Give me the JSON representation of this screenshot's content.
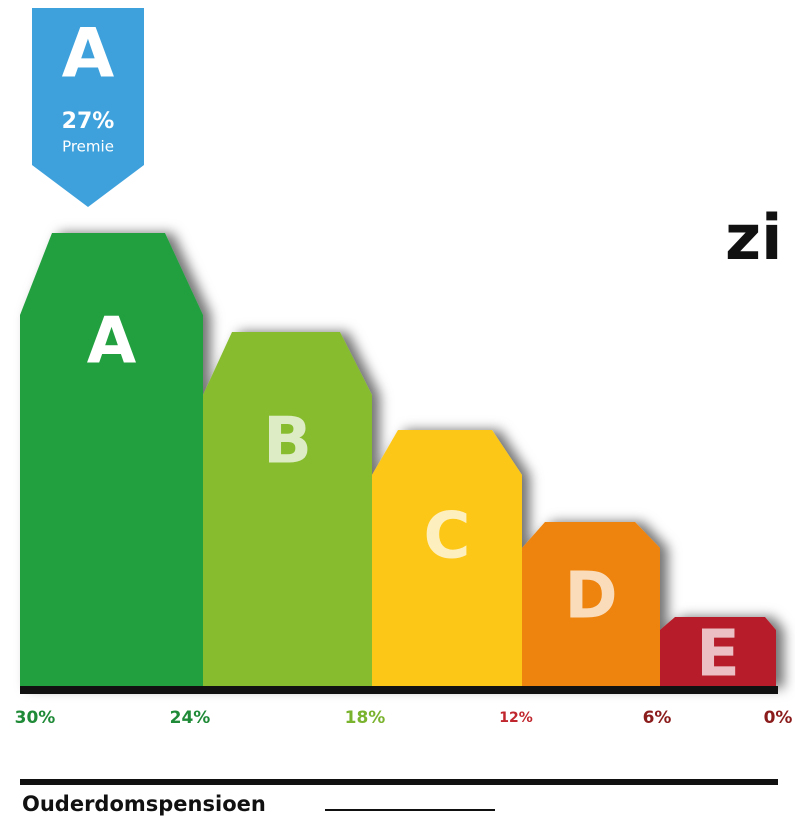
{
  "badge": {
    "letter": "A",
    "value": "27%",
    "label": "Premie"
  },
  "bars": [
    {
      "letter": "A",
      "color": "#21a03f"
    },
    {
      "letter": "B",
      "color": "#86bc2f"
    },
    {
      "letter": "C",
      "color": "#fcc717"
    },
    {
      "letter": "D",
      "color": "#ee8309"
    },
    {
      "letter": "E",
      "color": "#b61f29"
    }
  ],
  "scale_labels": [
    {
      "text": "30%",
      "color": "#1f8a37"
    },
    {
      "text": "24%",
      "color": "#1f8a37"
    },
    {
      "text": "18%",
      "color": "#7ab32e"
    },
    {
      "text": "12%",
      "color": "#c0262d"
    },
    {
      "text": "6%",
      "color": "#8b1c1c"
    },
    {
      "text": "0%",
      "color": "#8b1c1c"
    }
  ],
  "side_text": "zi",
  "footer": {
    "label": "Ouderdomspensioen"
  }
}
